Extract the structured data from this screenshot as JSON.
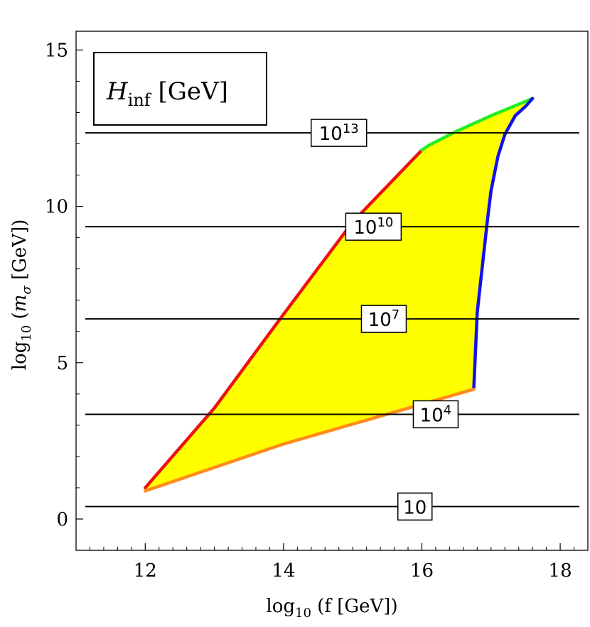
{
  "chart_data": {
    "type": "area",
    "title": "",
    "xlabel": {
      "prefix": "log",
      "sub": "10",
      "rest": " (f [GeV])"
    },
    "ylabel": {
      "prefix": "log",
      "sub": "10",
      "open": " (",
      "symbol": "m",
      "symbol_sub": "σ",
      "rest": " [GeV])"
    },
    "xlim": [
      11,
      18.4
    ],
    "ylim": [
      -1,
      15.6
    ],
    "xticks": [
      12,
      14,
      16,
      18
    ],
    "yticks": [
      0,
      5,
      10,
      15
    ],
    "legend": {
      "symbol": "H",
      "symbol_sub": "inf",
      "rest": " [GeV]",
      "placement": "top-left"
    },
    "grid": false,
    "contours": [
      {
        "y": 0.4,
        "label_base": "10",
        "label_exp": "",
        "label_x": 15.9
      },
      {
        "y": 3.35,
        "label_base": "10",
        "label_exp": "4",
        "label_x": 16.2
      },
      {
        "y": 6.4,
        "label_base": "10",
        "label_exp": "7",
        "label_x": 15.45
      },
      {
        "y": 9.35,
        "label_base": "10",
        "label_exp": "10",
        "label_x": 15.3
      },
      {
        "y": 12.35,
        "label_base": "10",
        "label_exp": "13",
        "label_x": 14.8
      }
    ],
    "region": {
      "fill": "#ffff00",
      "boundaries": [
        {
          "name": "upper-left",
          "color": "#ee1111",
          "points": [
            [
              12.0,
              1.0
            ],
            [
              13.0,
              3.55
            ],
            [
              14.0,
              6.55
            ],
            [
              15.0,
              9.5
            ],
            [
              16.0,
              11.8
            ]
          ]
        },
        {
          "name": "top",
          "color": "#22ee22",
          "points": [
            [
              16.0,
              11.8
            ],
            [
              16.1,
              11.95
            ],
            [
              16.5,
              12.4
            ],
            [
              17.0,
              12.9
            ],
            [
              17.6,
              13.45
            ]
          ]
        },
        {
          "name": "right",
          "color": "#1111ee",
          "points": [
            [
              17.6,
              13.45
            ],
            [
              17.5,
              13.2
            ],
            [
              17.35,
              12.9
            ],
            [
              17.2,
              12.3
            ],
            [
              17.1,
              11.6
            ],
            [
              17.0,
              10.5
            ],
            [
              16.95,
              9.6
            ],
            [
              16.9,
              8.6
            ],
            [
              16.85,
              7.6
            ],
            [
              16.8,
              6.6
            ],
            [
              16.78,
              5.6
            ],
            [
              16.75,
              4.15
            ]
          ]
        },
        {
          "name": "bottom",
          "color": "#ff8c1a",
          "points": [
            [
              16.75,
              4.15
            ],
            [
              14.0,
              2.4
            ],
            [
              12.0,
              0.9
            ]
          ]
        }
      ]
    }
  }
}
